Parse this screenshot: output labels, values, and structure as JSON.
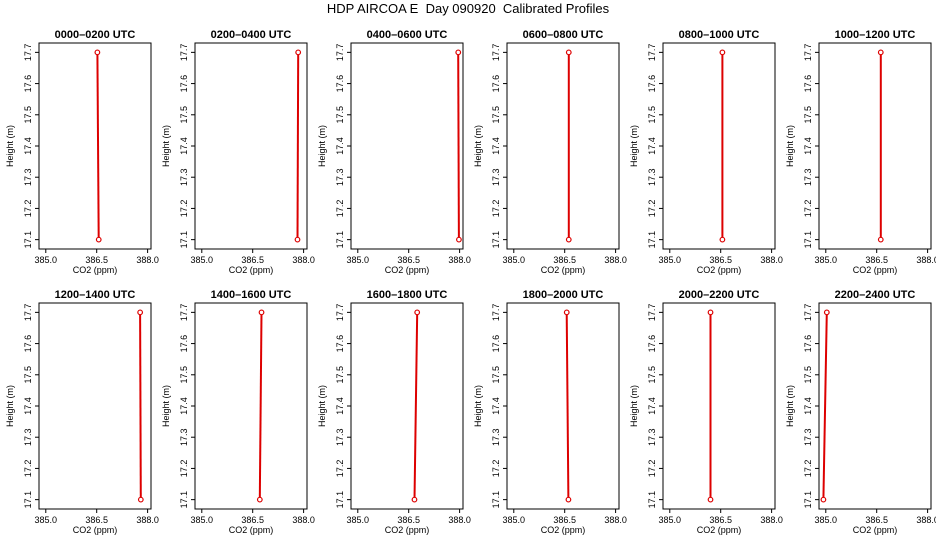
{
  "figure": {
    "title": "HDP AIRCOA E  Day 090920  Calibrated Profiles"
  },
  "style": {
    "line_color": "#dd0000",
    "marker_color": "#dd0000",
    "axis_color": "#000000"
  },
  "chart_data": [
    {
      "type": "line",
      "title": "0000–0200 UTC",
      "xlabel": "CO2 (ppm)",
      "ylabel": "Height (m)",
      "xlim": [
        384.8,
        388.1
      ],
      "ylim": [
        17.07,
        17.73
      ],
      "xticks": [
        "385.0",
        "386.5",
        "388.0"
      ],
      "yticks": [
        "17.1",
        "17.2",
        "17.3",
        "17.4",
        "17.5",
        "17.6",
        "17.7"
      ],
      "points": [
        {
          "x": 386.52,
          "y": 17.7
        },
        {
          "x": 386.56,
          "y": 17.1
        }
      ]
    },
    {
      "type": "line",
      "title": "0200–0400 UTC",
      "xlabel": "CO2 (ppm)",
      "ylabel": "Height (m)",
      "xlim": [
        384.8,
        388.1
      ],
      "ylim": [
        17.07,
        17.73
      ],
      "xticks": [
        "385.0",
        "386.5",
        "388.0"
      ],
      "yticks": [
        "17.1",
        "17.2",
        "17.3",
        "17.4",
        "17.5",
        "17.6",
        "17.7"
      ],
      "points": [
        {
          "x": 387.84,
          "y": 17.7
        },
        {
          "x": 387.82,
          "y": 17.1
        }
      ]
    },
    {
      "type": "line",
      "title": "0400–0600 UTC",
      "xlabel": "CO2 (ppm)",
      "ylabel": "Height (m)",
      "xlim": [
        384.8,
        388.1
      ],
      "ylim": [
        17.07,
        17.73
      ],
      "xticks": [
        "385.0",
        "386.5",
        "388.0"
      ],
      "yticks": [
        "17.1",
        "17.2",
        "17.3",
        "17.4",
        "17.5",
        "17.6",
        "17.7"
      ],
      "points": [
        {
          "x": 387.96,
          "y": 17.7
        },
        {
          "x": 387.98,
          "y": 17.1
        }
      ]
    },
    {
      "type": "line",
      "title": "0600–0800 UTC",
      "xlabel": "CO2 (ppm)",
      "ylabel": "Height (m)",
      "xlim": [
        384.8,
        388.1
      ],
      "ylim": [
        17.07,
        17.73
      ],
      "xticks": [
        "385.0",
        "386.5",
        "388.0"
      ],
      "yticks": [
        "17.1",
        "17.2",
        "17.3",
        "17.4",
        "17.5",
        "17.6",
        "17.7"
      ],
      "points": [
        {
          "x": 386.62,
          "y": 17.7
        },
        {
          "x": 386.62,
          "y": 17.1
        }
      ]
    },
    {
      "type": "line",
      "title": "0800–1000 UTC",
      "xlabel": "CO2 (ppm)",
      "ylabel": "Height (m)",
      "xlim": [
        384.8,
        388.1
      ],
      "ylim": [
        17.07,
        17.73
      ],
      "xticks": [
        "385.0",
        "386.5",
        "388.0"
      ],
      "yticks": [
        "17.1",
        "17.2",
        "17.3",
        "17.4",
        "17.5",
        "17.6",
        "17.7"
      ],
      "points": [
        {
          "x": 386.55,
          "y": 17.7
        },
        {
          "x": 386.55,
          "y": 17.1
        }
      ]
    },
    {
      "type": "line",
      "title": "1000–1200 UTC",
      "xlabel": "CO2 (ppm)",
      "ylabel": "Height (m)",
      "xlim": [
        384.8,
        388.1
      ],
      "ylim": [
        17.07,
        17.73
      ],
      "xticks": [
        "385.0",
        "386.5",
        "388.0"
      ],
      "yticks": [
        "17.1",
        "17.2",
        "17.3",
        "17.4",
        "17.5",
        "17.6",
        "17.7"
      ],
      "points": [
        {
          "x": 386.62,
          "y": 17.7
        },
        {
          "x": 386.62,
          "y": 17.1
        }
      ]
    },
    {
      "type": "line",
      "title": "1200–1400 UTC",
      "xlabel": "CO2 (ppm)",
      "ylabel": "Height (m)",
      "xlim": [
        384.8,
        388.1
      ],
      "ylim": [
        17.07,
        17.73
      ],
      "xticks": [
        "385.0",
        "386.5",
        "388.0"
      ],
      "yticks": [
        "17.1",
        "17.2",
        "17.3",
        "17.4",
        "17.5",
        "17.6",
        "17.7"
      ],
      "points": [
        {
          "x": 387.78,
          "y": 17.7
        },
        {
          "x": 387.8,
          "y": 17.1
        }
      ]
    },
    {
      "type": "line",
      "title": "1400–1600 UTC",
      "xlabel": "CO2 (ppm)",
      "ylabel": "Height (m)",
      "xlim": [
        384.8,
        388.1
      ],
      "ylim": [
        17.07,
        17.73
      ],
      "xticks": [
        "385.0",
        "386.5",
        "388.0"
      ],
      "yticks": [
        "17.1",
        "17.2",
        "17.3",
        "17.4",
        "17.5",
        "17.6",
        "17.7"
      ],
      "points": [
        {
          "x": 386.76,
          "y": 17.7
        },
        {
          "x": 386.71,
          "y": 17.1
        }
      ]
    },
    {
      "type": "line",
      "title": "1600–1800 UTC",
      "xlabel": "CO2 (ppm)",
      "ylabel": "Height (m)",
      "xlim": [
        384.8,
        388.1
      ],
      "ylim": [
        17.07,
        17.73
      ],
      "xticks": [
        "385.0",
        "386.5",
        "388.0"
      ],
      "yticks": [
        "17.1",
        "17.2",
        "17.3",
        "17.4",
        "17.5",
        "17.6",
        "17.7"
      ],
      "points": [
        {
          "x": 386.75,
          "y": 17.7
        },
        {
          "x": 386.67,
          "y": 17.1
        }
      ]
    },
    {
      "type": "line",
      "title": "1800–2000 UTC",
      "xlabel": "CO2 (ppm)",
      "ylabel": "Height (m)",
      "xlim": [
        384.8,
        388.1
      ],
      "ylim": [
        17.07,
        17.73
      ],
      "xticks": [
        "385.0",
        "386.5",
        "388.0"
      ],
      "yticks": [
        "17.1",
        "17.2",
        "17.3",
        "17.4",
        "17.5",
        "17.6",
        "17.7"
      ],
      "points": [
        {
          "x": 386.56,
          "y": 17.7
        },
        {
          "x": 386.61,
          "y": 17.1
        }
      ]
    },
    {
      "type": "line",
      "title": "2000–2200 UTC",
      "xlabel": "CO2 (ppm)",
      "ylabel": "Height (m)",
      "xlim": [
        384.8,
        388.1
      ],
      "ylim": [
        17.07,
        17.73
      ],
      "xticks": [
        "385.0",
        "386.5",
        "388.0"
      ],
      "yticks": [
        "17.1",
        "17.2",
        "17.3",
        "17.4",
        "17.5",
        "17.6",
        "17.7"
      ],
      "points": [
        {
          "x": 386.2,
          "y": 17.7
        },
        {
          "x": 386.2,
          "y": 17.1
        }
      ]
    },
    {
      "type": "line",
      "title": "2200–2400 UTC",
      "xlabel": "CO2 (ppm)",
      "ylabel": "Height (m)",
      "xlim": [
        384.8,
        388.1
      ],
      "ylim": [
        17.07,
        17.73
      ],
      "xticks": [
        "385.0",
        "386.5",
        "388.0"
      ],
      "yticks": [
        "17.1",
        "17.2",
        "17.3",
        "17.4",
        "17.5",
        "17.6",
        "17.7"
      ],
      "points": [
        {
          "x": 385.03,
          "y": 17.7
        },
        {
          "x": 384.93,
          "y": 17.1
        }
      ]
    }
  ]
}
